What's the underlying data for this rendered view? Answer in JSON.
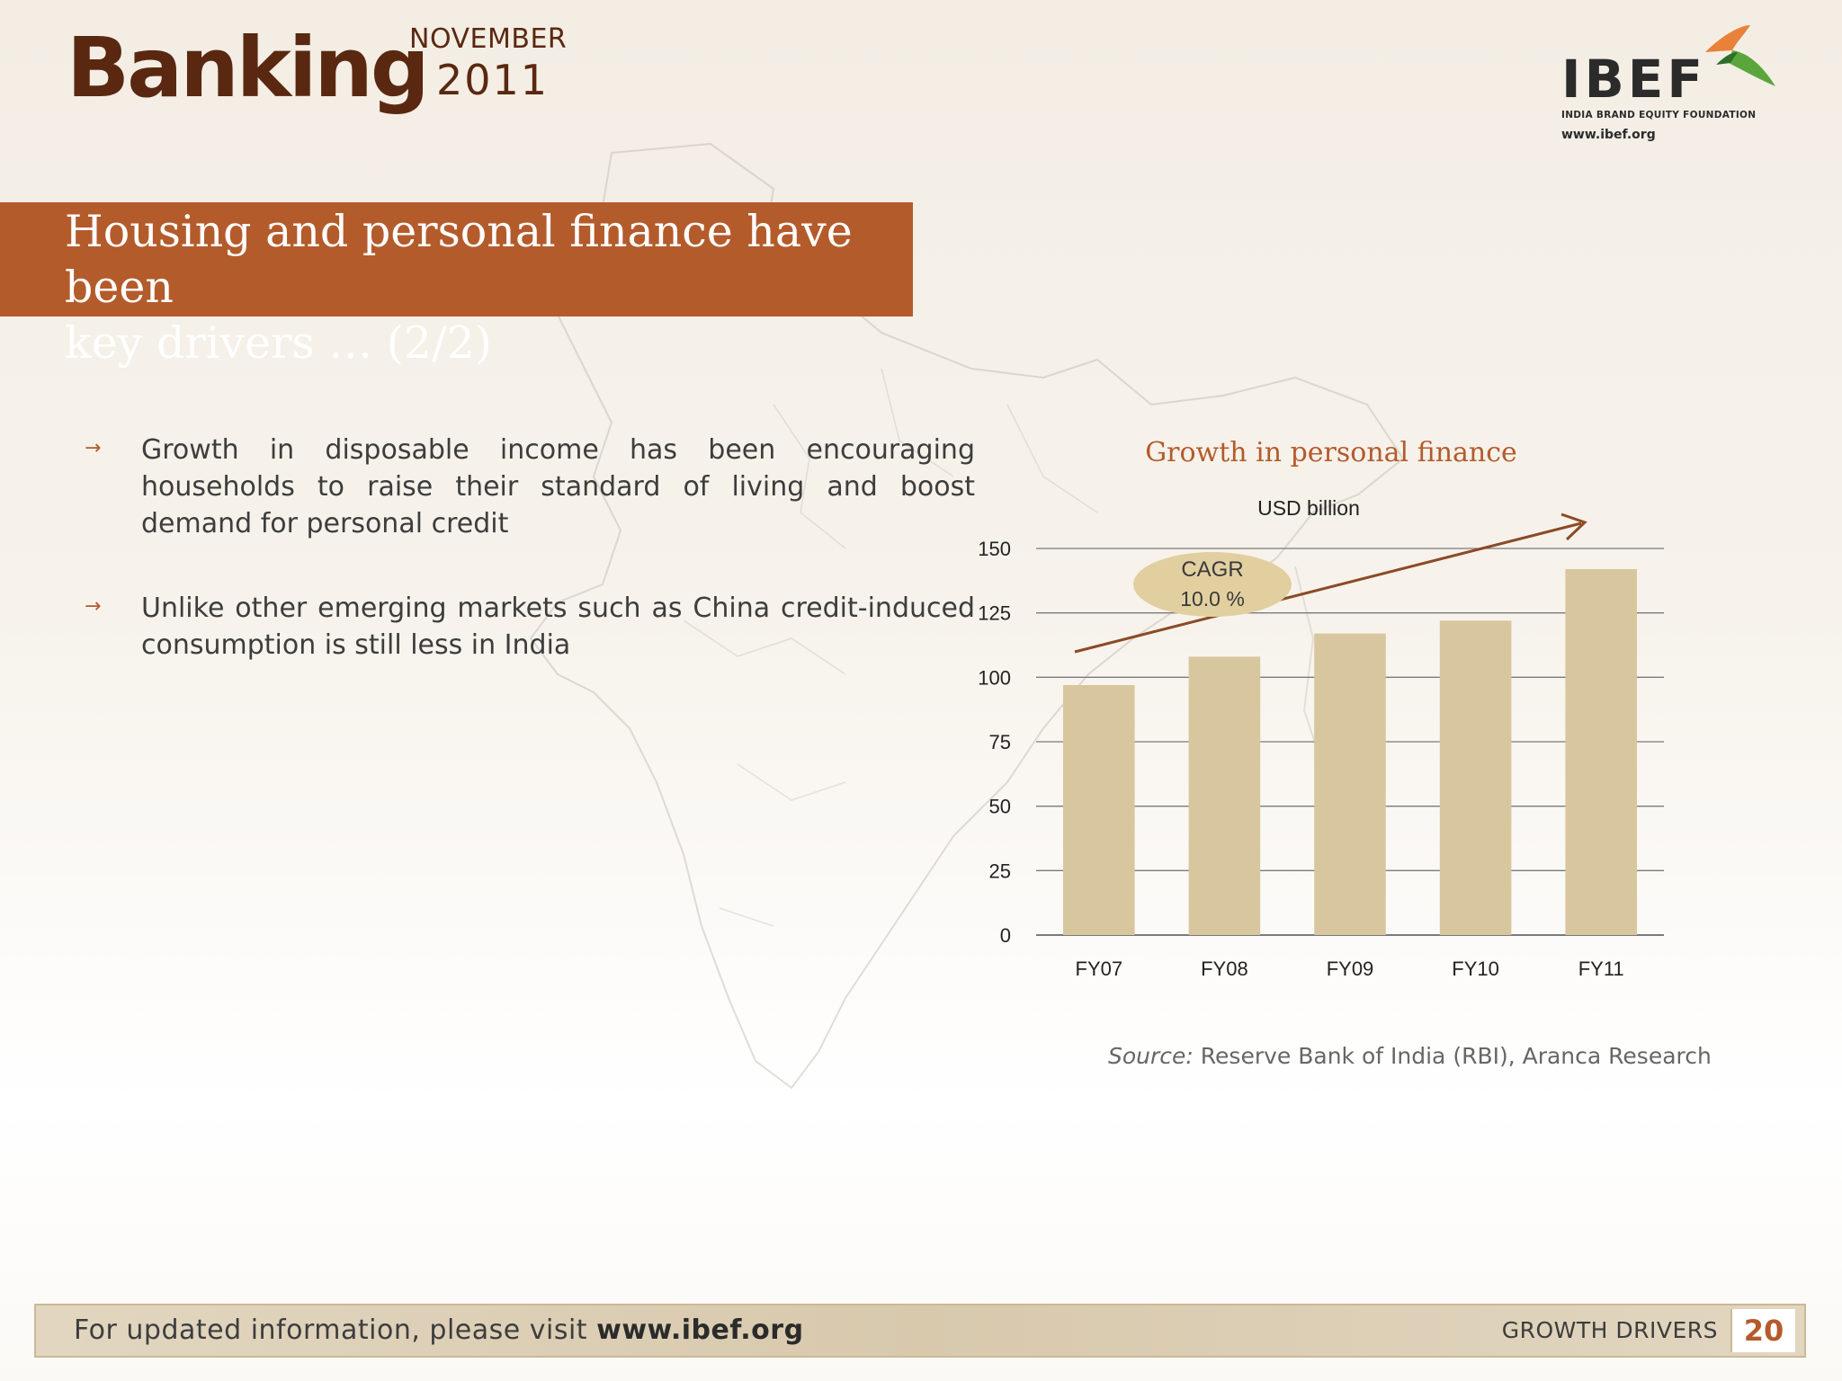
{
  "header": {
    "title": "Banking",
    "month": "NOVEMBER",
    "year": "2011"
  },
  "logo": {
    "name": "IBEF",
    "tagline": "INDIA BRAND EQUITY FOUNDATION",
    "url": "www.ibef.org"
  },
  "banner": {
    "line1": "Housing and personal finance have been",
    "line2": "key drivers … (2/2)"
  },
  "bullets": [
    {
      "text": "Growth in disposable income has been encouraging households to raise their standard of living and boost demand for personal credit"
    },
    {
      "text": "Unlike other emerging markets such as China credit-induced consumption is still less in India"
    }
  ],
  "chart_data": {
    "type": "bar",
    "title": "Growth in personal finance",
    "unit_label": "USD billion",
    "categories": [
      "FY07",
      "FY08",
      "FY09",
      "FY10",
      "FY11"
    ],
    "values": [
      97,
      108,
      117,
      122,
      142
    ],
    "ylim": [
      0,
      150
    ],
    "yticks": [
      "0",
      "25",
      "50",
      "75",
      "100",
      "125",
      "150"
    ],
    "annotation": {
      "label": "CAGR",
      "value": "10.0 %"
    },
    "bar_color": "#d8c69e",
    "trend_color": "#8b4a25",
    "grid": true
  },
  "source": {
    "label": "Source:",
    "text": "Reserve Bank of India (RBI), Aranca Research"
  },
  "footer": {
    "text": "For updated information, please visit",
    "link": "www.ibef.org",
    "section": "GROWTH DRIVERS",
    "page": "20"
  }
}
